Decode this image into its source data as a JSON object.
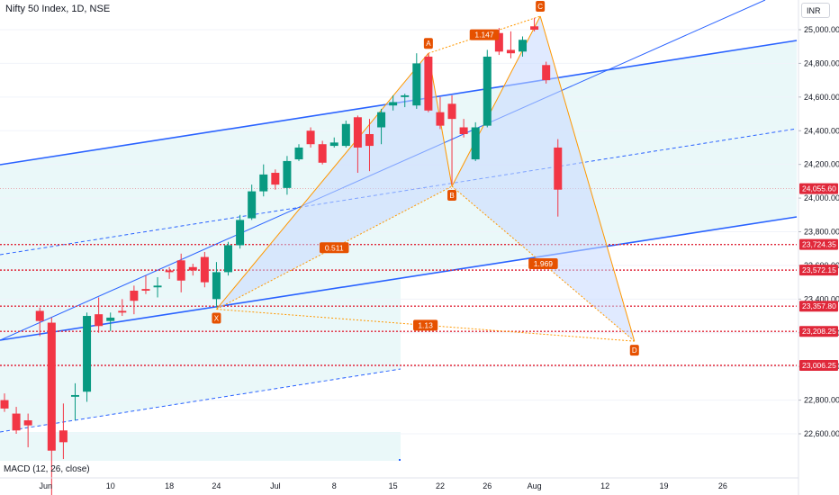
{
  "header": {
    "title": "Nifty 50 Index, 1D, NSE",
    "currency": "INR"
  },
  "indicator": {
    "label": "MACD (12, 26, close)"
  },
  "colors": {
    "up": "#089981",
    "down": "#f23645",
    "channel": "#2962ff",
    "pattern": "#ff9800",
    "pattern_fill": "#c7d9ff",
    "channel_fill": "#e6f7f8",
    "level": "#e0283a",
    "badge": "#e65100"
  },
  "chart_data": {
    "type": "candlestick",
    "title": "Nifty 50 Index, 1D, NSE",
    "y_axis": {
      "range": [
        22450,
        25120
      ],
      "ticks": [
        22600,
        22800,
        23000,
        23200,
        23400,
        23600,
        23800,
        24000,
        24200,
        24400,
        24600,
        24800,
        25000
      ],
      "tick_labels": [
        "22,600.00",
        "22,800.00",
        "23,000.00",
        "23,200.00",
        "23,400.00",
        "23,600.00",
        "23,800.00",
        "24,000.00",
        "24,200.00",
        "24,400.00",
        "24,600.00",
        "24,800.00",
        "25,000.00"
      ]
    },
    "x_axis": {
      "labels": [
        {
          "text": "Jun",
          "idx": 3.5
        },
        {
          "text": "10",
          "idx": 9
        },
        {
          "text": "18",
          "idx": 14
        },
        {
          "text": "24",
          "idx": 18
        },
        {
          "text": "Jul",
          "idx": 23
        },
        {
          "text": "8",
          "idx": 28
        },
        {
          "text": "15",
          "idx": 33
        },
        {
          "text": "22",
          "idx": 37
        },
        {
          "text": "26",
          "idx": 41
        },
        {
          "text": "Aug",
          "idx": 45
        },
        {
          "text": "12",
          "idx": 51
        },
        {
          "text": "19",
          "idx": 56
        },
        {
          "text": "26",
          "idx": 61
        }
      ]
    },
    "candles": [
      {
        "o": 22800,
        "h": 22840,
        "l": 22730,
        "c": 22750
      },
      {
        "o": 22720,
        "h": 22760,
        "l": 22600,
        "c": 22620
      },
      {
        "o": 22680,
        "h": 22720,
        "l": 22520,
        "c": 22650
      },
      {
        "o": 23330,
        "h": 23350,
        "l": 23180,
        "c": 23270
      },
      {
        "o": 23260,
        "h": 23290,
        "l": 22100,
        "c": 22500
      },
      {
        "o": 22620,
        "h": 22780,
        "l": 22450,
        "c": 22550
      },
      {
        "o": 22820,
        "h": 22900,
        "l": 22680,
        "c": 22830
      },
      {
        "o": 22850,
        "h": 23320,
        "l": 22790,
        "c": 23300
      },
      {
        "o": 23310,
        "h": 23410,
        "l": 23200,
        "c": 23240
      },
      {
        "o": 23270,
        "h": 23320,
        "l": 23210,
        "c": 23290
      },
      {
        "o": 23330,
        "h": 23400,
        "l": 23300,
        "c": 23320
      },
      {
        "o": 23450,
        "h": 23480,
        "l": 23310,
        "c": 23390
      },
      {
        "o": 23460,
        "h": 23540,
        "l": 23430,
        "c": 23450
      },
      {
        "o": 23470,
        "h": 23530,
        "l": 23410,
        "c": 23480
      },
      {
        "o": 23570,
        "h": 23590,
        "l": 23520,
        "c": 23560
      },
      {
        "o": 23630,
        "h": 23670,
        "l": 23440,
        "c": 23510
      },
      {
        "o": 23590,
        "h": 23610,
        "l": 23540,
        "c": 23570
      },
      {
        "o": 23650,
        "h": 23680,
        "l": 23470,
        "c": 23500
      },
      {
        "o": 23400,
        "h": 23620,
        "l": 23350,
        "c": 23560
      },
      {
        "o": 23560,
        "h": 23740,
        "l": 23540,
        "c": 23720
      },
      {
        "o": 23720,
        "h": 23900,
        "l": 23700,
        "c": 23870
      },
      {
        "o": 23880,
        "h": 24080,
        "l": 23870,
        "c": 24040
      },
      {
        "o": 24040,
        "h": 24200,
        "l": 24010,
        "c": 24140
      },
      {
        "o": 24150,
        "h": 24170,
        "l": 24050,
        "c": 24080
      },
      {
        "o": 24060,
        "h": 24250,
        "l": 24020,
        "c": 24220
      },
      {
        "o": 24230,
        "h": 24320,
        "l": 24220,
        "c": 24300
      },
      {
        "o": 24400,
        "h": 24420,
        "l": 24300,
        "c": 24320
      },
      {
        "o": 24320,
        "h": 24340,
        "l": 24200,
        "c": 24210
      },
      {
        "o": 24310,
        "h": 24360,
        "l": 24300,
        "c": 24330
      },
      {
        "o": 24310,
        "h": 24460,
        "l": 24300,
        "c": 24440
      },
      {
        "o": 24480,
        "h": 24490,
        "l": 24150,
        "c": 24300
      },
      {
        "o": 24380,
        "h": 24470,
        "l": 24160,
        "c": 24310
      },
      {
        "o": 24420,
        "h": 24530,
        "l": 24320,
        "c": 24510
      },
      {
        "o": 24550,
        "h": 24610,
        "l": 24520,
        "c": 24570
      },
      {
        "o": 24600,
        "h": 24620,
        "l": 24540,
        "c": 24610
      },
      {
        "o": 24550,
        "h": 24860,
        "l": 24530,
        "c": 24800
      },
      {
        "o": 24840,
        "h": 24860,
        "l": 24510,
        "c": 24520
      },
      {
        "o": 24510,
        "h": 24600,
        "l": 24410,
        "c": 24430
      },
      {
        "o": 24560,
        "h": 24610,
        "l": 24080,
        "c": 24470
      },
      {
        "o": 24420,
        "h": 24470,
        "l": 24360,
        "c": 24380
      },
      {
        "o": 24230,
        "h": 24450,
        "l": 24220,
        "c": 24420
      },
      {
        "o": 24430,
        "h": 24880,
        "l": 24420,
        "c": 24840
      },
      {
        "o": 24980,
        "h": 25010,
        "l": 24850,
        "c": 24870
      },
      {
        "o": 24880,
        "h": 24990,
        "l": 24830,
        "c": 24860
      },
      {
        "o": 24870,
        "h": 24960,
        "l": 24840,
        "c": 24940
      },
      {
        "o": 25020,
        "h": 25070,
        "l": 24990,
        "c": 25000
      },
      {
        "o": 24790,
        "h": 24810,
        "l": 24680,
        "c": 24700
      },
      {
        "o": 24300,
        "h": 24350,
        "l": 23890,
        "c": 24050
      }
    ],
    "price_levels": [
      {
        "label": "24,055.60",
        "value": 24055.6,
        "type": "current"
      },
      {
        "label": "23,724.35",
        "value": 23724.35,
        "type": "level"
      },
      {
        "label": "23,572.15",
        "value": 23572.15,
        "type": "level"
      },
      {
        "label": "23,357.80",
        "value": 23357.8,
        "type": "level"
      },
      {
        "label": "23,208.25",
        "value": 23208.25,
        "type": "level"
      },
      {
        "label": "23,006.25",
        "value": 23006.25,
        "type": "level"
      }
    ],
    "harmonic_pattern": {
      "points": [
        {
          "label": "X",
          "idx": 18,
          "value": 23340
        },
        {
          "label": "A",
          "idx": 36,
          "value": 24860
        },
        {
          "label": "B",
          "idx": 38,
          "value": 24070
        },
        {
          "label": "C",
          "idx": 45.5,
          "value": 25080
        },
        {
          "label": "D",
          "idx": 53.5,
          "value": 23150
        }
      ],
      "ratios": [
        {
          "text": "0.511",
          "at": "XB"
        },
        {
          "text": "1.147",
          "at": "AC"
        },
        {
          "text": "1.969",
          "at": "BD"
        },
        {
          "text": "1.13",
          "at": "XD"
        }
      ]
    }
  }
}
